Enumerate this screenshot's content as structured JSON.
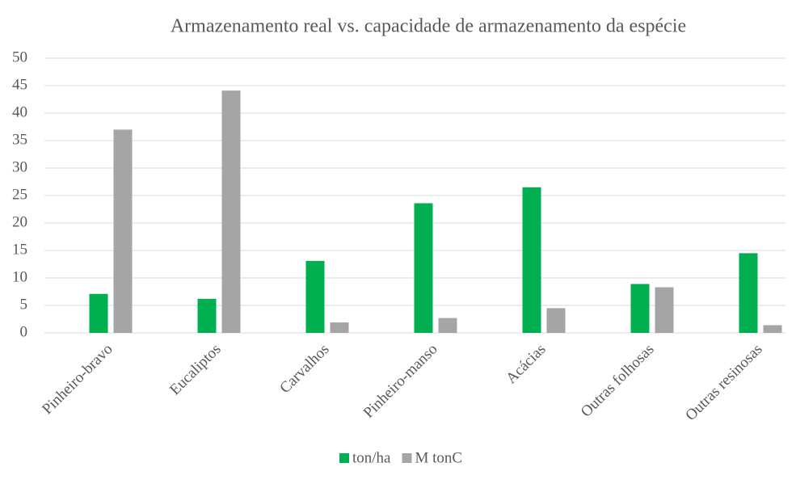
{
  "chart_data": {
    "type": "bar",
    "title": "Armazenamento real vs. capacidade de armazenamento da espécie",
    "categories": [
      "Pinheiro-bravo",
      "Eucaliptos",
      "Carvalhos",
      "Pinheiro-manso",
      "Acácias",
      "Outras folhosas",
      "Outras resinosas"
    ],
    "series": [
      {
        "name": "ton/ha",
        "color": "#00b050",
        "values": [
          7.1,
          6.2,
          13.1,
          23.6,
          26.5,
          8.9,
          14.5
        ]
      },
      {
        "name": "M tonC",
        "color": "#a5a5a5",
        "values": [
          37,
          44.1,
          1.9,
          2.7,
          4.5,
          8.3,
          1.4
        ]
      }
    ],
    "ylim": [
      0,
      50
    ],
    "yticks": [
      0,
      5,
      10,
      15,
      20,
      25,
      30,
      35,
      40,
      45,
      50
    ],
    "grid": true,
    "legend": "bottom"
  }
}
